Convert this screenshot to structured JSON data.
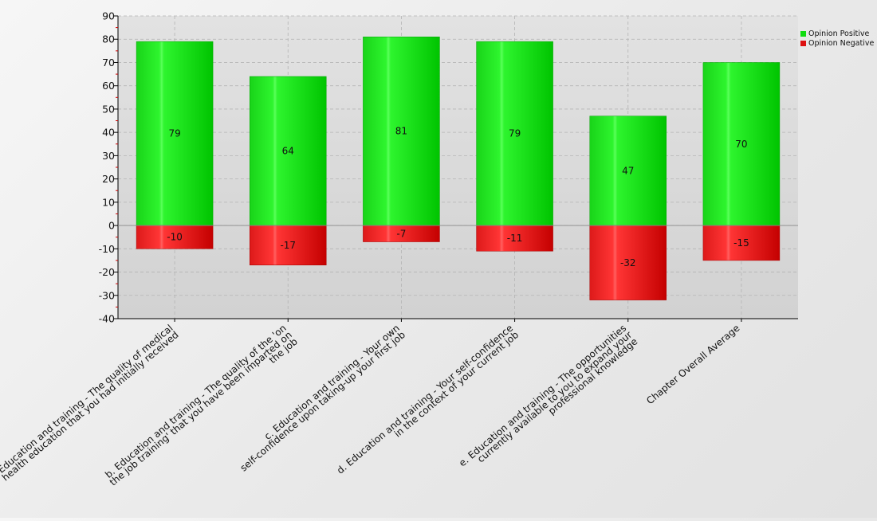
{
  "chart_data": {
    "type": "bar",
    "stacked": true,
    "categories": [
      "a. Education and training - The quality of medical|health education that you had initially received",
      "b. Education and training - The quality of the 'on|the job training' that you have been imparted on|the job",
      "c. Education and training - Your own|self-confidence upon taking-up your first job",
      "d. Education and training - Your self-confidence|in the context of your current job",
      "e. Education and training - The opportunities|currently available to you to expand your|professional knowledge",
      "Chapter Overall Average"
    ],
    "series": [
      {
        "name": "Opinion Positive",
        "color": "#22dd22",
        "values": [
          79,
          64,
          81,
          79,
          47,
          70
        ]
      },
      {
        "name": "Opinion Negative",
        "color": "#ee2222",
        "values": [
          -10,
          -17,
          -7,
          -11,
          -32,
          -15
        ]
      }
    ],
    "data_labels": {
      "positive": [
        "79",
        "64",
        "81",
        "79",
        "47",
        "70"
      ],
      "negative": [
        "-10",
        "-17",
        "-7",
        "-11",
        "-32",
        "-15"
      ]
    },
    "yticks": [
      "90",
      "80",
      "70",
      "60",
      "50",
      "40",
      "30",
      "20",
      "10",
      "0",
      "-10",
      "-20",
      "-30",
      "-40"
    ],
    "ylim": [
      -40,
      90
    ],
    "title": "",
    "xlabel": "",
    "ylabel": "",
    "grid": true,
    "legend_position": "top-right"
  }
}
